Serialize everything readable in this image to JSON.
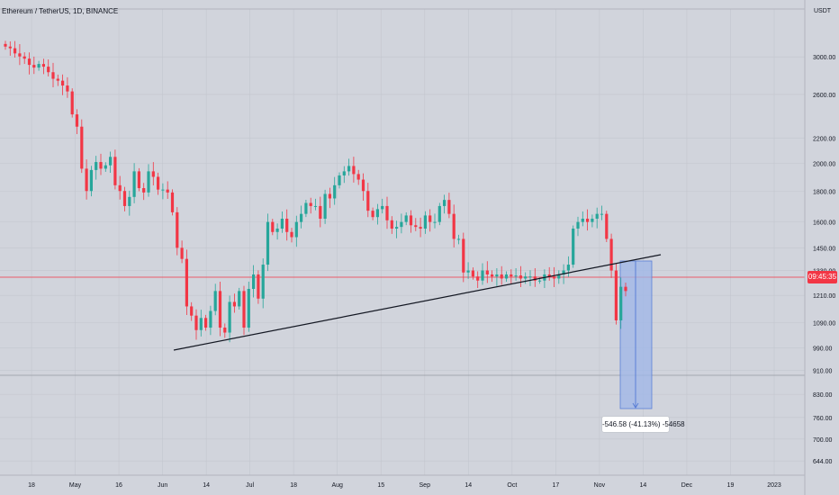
{
  "symbol": {
    "label": "Ethereum / TetherUS, 1D, BINANCE"
  },
  "currency": "USDT",
  "colors": {
    "up": "#26a69a",
    "down": "#f23645",
    "trendline": "#131722",
    "measure_fill": "#9db6e8",
    "measure_stroke": "#5b7fd6",
    "price_line": "#f23645"
  },
  "price_axis": {
    "ticks": [
      "3000.00",
      "2600.00",
      "2200.00",
      "2000.00",
      "1800.00",
      "1600.00",
      "1450.00",
      "1330.00",
      "1210.00",
      "1090.00",
      "990.00",
      "910.00",
      "830.00",
      "760.00",
      "700.00",
      "644.00"
    ]
  },
  "time_axis": {
    "ticks": [
      "18",
      "May",
      "16",
      "Jun",
      "14",
      "Jul",
      "18",
      "Aug",
      "15",
      "Sep",
      "14",
      "Oct",
      "17",
      "Nov",
      "14",
      "Dec",
      "19",
      "2023"
    ]
  },
  "current_price_tag": "09:45:35",
  "measure": {
    "label": "-546.58 (-41.13%) -54658"
  },
  "chart_data": {
    "type": "candlestick",
    "scale": "log",
    "y_unit": "USDT",
    "ylim": [
      610,
      3600
    ],
    "close_series": [
      3120,
      3100,
      3040,
      3005,
      2980,
      2910,
      2880,
      2920,
      2890,
      2830,
      2760,
      2740,
      2690,
      2630,
      2410,
      2300,
      1960,
      1800,
      1950,
      2010,
      1960,
      1985,
      2050,
      1840,
      1800,
      1700,
      1760,
      1940,
      1820,
      1790,
      1940,
      1900,
      1810,
      1810,
      1790,
      1660,
      1450,
      1390,
      1160,
      1120,
      1060,
      1110,
      1070,
      1140,
      1230,
      1070,
      1050,
      1180,
      1160,
      1230,
      1070,
      1240,
      1310,
      1195,
      1360,
      1600,
      1540,
      1560,
      1620,
      1540,
      1510,
      1600,
      1650,
      1720,
      1700,
      1700,
      1620,
      1780,
      1750,
      1840,
      1910,
      1940,
      1980,
      1920,
      1880,
      1800,
      1670,
      1630,
      1680,
      1700,
      1610,
      1560,
      1570,
      1600,
      1640,
      1580,
      1570,
      1560,
      1640,
      1600,
      1600,
      1700,
      1740,
      1650,
      1500,
      1500,
      1320,
      1330,
      1300,
      1280,
      1330,
      1310,
      1300,
      1310,
      1290,
      1310,
      1300,
      1305,
      1290,
      1300,
      1300,
      1280,
      1280,
      1310,
      1300,
      1290,
      1310,
      1330,
      1360,
      1560,
      1600,
      1620,
      1600,
      1620,
      1650,
      1650,
      1500,
      1330,
      1100,
      1250,
      1230
    ]
  }
}
